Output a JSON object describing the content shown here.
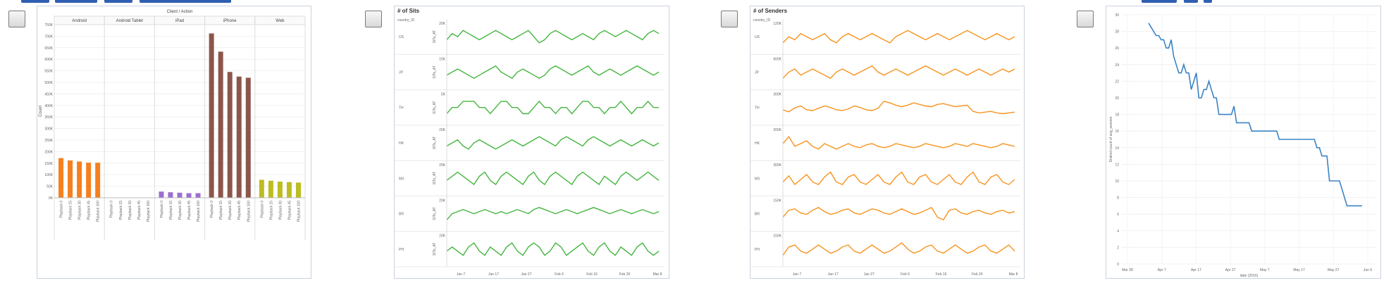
{
  "colors": {
    "accent": "#2f5fb3",
    "android": "#f4801f",
    "ipad": "#9d6fd0",
    "iphone": "#8c564b",
    "web": "#bcbd22",
    "sits": "#44b53f",
    "senders": "#f7931e",
    "steps": "#3b83c5",
    "border": "#c9d2dc"
  },
  "checkboxes": [
    {
      "name": "select-thumbnail-1",
      "checked": false
    },
    {
      "name": "select-thumbnail-2",
      "checked": false
    },
    {
      "name": "select-thumbnail-3",
      "checked": false
    },
    {
      "name": "select-thumbnail-4",
      "checked": false
    }
  ],
  "chart_data": [
    {
      "type": "bar",
      "title": "Client / Action",
      "ylabel": "Count",
      "ylim": [
        0,
        750000
      ],
      "yticks": [
        "0K",
        "50K",
        "100K",
        "150K",
        "200K",
        "250K",
        "300K",
        "350K",
        "400K",
        "450K",
        "500K",
        "550K",
        "600K",
        "650K",
        "700K",
        "750K"
      ],
      "panels": [
        {
          "name": "Android",
          "color_key": "android",
          "categories": [
            "Playback 0",
            "Playback 15",
            "Playback 30",
            "Playback 45",
            "Playback 100"
          ],
          "values": [
            172000,
            162000,
            157000,
            152000,
            152000
          ]
        },
        {
          "name": "Android Tablet",
          "color_key": "android",
          "categories": [
            "Playback 0",
            "Playback 15",
            "Playback 30",
            "Playback 45",
            "Playback 100"
          ],
          "values": [
            1500,
            1400,
            1300,
            1200,
            1100
          ]
        },
        {
          "name": "iPad",
          "color_key": "ipad",
          "categories": [
            "Playback 0",
            "Playback 15",
            "Playback 30",
            "Playback 45",
            "Playback 100"
          ],
          "values": [
            27000,
            24000,
            22000,
            20000,
            20000
          ]
        },
        {
          "name": "iPhone",
          "color_key": "iphone",
          "categories": [
            "Playback 0",
            "Playback 15",
            "Playback 30",
            "Playback 45",
            "Playback 100"
          ],
          "values": [
            712000,
            633000,
            545000,
            525000,
            520000
          ]
        },
        {
          "name": "Web",
          "color_key": "web",
          "categories": [
            "Playback 0",
            "Playback 15",
            "Playback 30",
            "Playback 45",
            "Playback 100"
          ],
          "values": [
            78000,
            74000,
            70000,
            68000,
            66000
          ]
        }
      ]
    },
    {
      "type": "line",
      "title": "# of Sits",
      "row_header": "country_ID",
      "ylabel": "SITs_AT",
      "xticks": [
        "Jan 7",
        "Jan 17",
        "Jan 27",
        "Feb 6",
        "Feb 16",
        "Feb 26",
        "Mar 8"
      ],
      "rows": [
        {
          "name": "US",
          "top_tick": "20K",
          "values": [
            16,
            18,
            17,
            19,
            18,
            17,
            16,
            17,
            18,
            19,
            18,
            17,
            16,
            17,
            18,
            19,
            17,
            15,
            16,
            18,
            19,
            18,
            17,
            16,
            17,
            18,
            17,
            16,
            18,
            19,
            18,
            17,
            18,
            19,
            18,
            17,
            16,
            18,
            19,
            18
          ]
        },
        {
          "name": "JP",
          "top_tick": "15K",
          "values": [
            10,
            11,
            12,
            11,
            10,
            9,
            10,
            11,
            12,
            13,
            11,
            10,
            9,
            11,
            12,
            11,
            10,
            9,
            10,
            12,
            13,
            12,
            11,
            10,
            11,
            12,
            13,
            11,
            10,
            11,
            12,
            11,
            10,
            11,
            12,
            13,
            12,
            11,
            10,
            11
          ]
        },
        {
          "name": "TH",
          "top_tick": "5K",
          "values": [
            4.0,
            4.1,
            4.1,
            4.2,
            4.2,
            4.2,
            4.1,
            4.1,
            4.0,
            4.1,
            4.2,
            4.2,
            4.1,
            4.1,
            4.0,
            4.0,
            4.1,
            4.2,
            4.1,
            4.1,
            4.0,
            4.1,
            4.1,
            4.0,
            4.1,
            4.2,
            4.2,
            4.1,
            4.1,
            4.0,
            4.1,
            4.1,
            4.2,
            4.1,
            4.0,
            4.1,
            4.1,
            4.2,
            4.1,
            4.1
          ]
        },
        {
          "name": "HK",
          "top_tick": "20K",
          "values": [
            13,
            14,
            15,
            13,
            12,
            14,
            15,
            14,
            13,
            12,
            13,
            14,
            15,
            14,
            13,
            14,
            15,
            16,
            15,
            14,
            13,
            15,
            16,
            15,
            14,
            13,
            15,
            16,
            15,
            14,
            13,
            14,
            15,
            14,
            13,
            14,
            15,
            14,
            13,
            14
          ]
        },
        {
          "name": "MX",
          "top_tick": "20K",
          "values": [
            14,
            15,
            16,
            15,
            14,
            13,
            15,
            16,
            14,
            13,
            15,
            16,
            15,
            14,
            13,
            15,
            16,
            14,
            13,
            15,
            16,
            15,
            14,
            13,
            15,
            16,
            15,
            14,
            13,
            15,
            14,
            13,
            15,
            16,
            15,
            14,
            15,
            16,
            15,
            14
          ]
        },
        {
          "name": "BR",
          "top_tick": "20K",
          "values": [
            9,
            12,
            13,
            14,
            13,
            12,
            13,
            14,
            13,
            12,
            13,
            12,
            13,
            14,
            13,
            12,
            14,
            15,
            14,
            13,
            12,
            13,
            14,
            13,
            12,
            13,
            14,
            15,
            14,
            13,
            12,
            13,
            14,
            13,
            12,
            13,
            14,
            13,
            12,
            13
          ]
        },
        {
          "name": "PH",
          "top_tick": "20K",
          "values": [
            13,
            14,
            13,
            12,
            14,
            15,
            13,
            12,
            14,
            13,
            12,
            14,
            15,
            13,
            12,
            14,
            15,
            14,
            12,
            13,
            15,
            14,
            12,
            13,
            14,
            15,
            13,
            12,
            14,
            15,
            13,
            12,
            14,
            13,
            12,
            14,
            15,
            13,
            12,
            13
          ]
        }
      ]
    },
    {
      "type": "line",
      "title": "# of Senders",
      "row_header": "country_ID",
      "xticks": [
        "Jan 7",
        "Jan 17",
        "Jan 27",
        "Feb 6",
        "Feb 16",
        "Feb 26",
        "Mar 8"
      ],
      "rows": [
        {
          "name": "US",
          "top_tick": "120K",
          "values": [
            95,
            97,
            96,
            98,
            97,
            96,
            97,
            98,
            96,
            95,
            97,
            98,
            97,
            96,
            97,
            98,
            97,
            96,
            95,
            97,
            98,
            99,
            98,
            97,
            96,
            97,
            98,
            97,
            96,
            97,
            98,
            99,
            98,
            97,
            96,
            97,
            98,
            97,
            96,
            97
          ]
        },
        {
          "name": "JP",
          "top_tick": "600K",
          "values": [
            50,
            52,
            53,
            51,
            52,
            53,
            52,
            51,
            50,
            52,
            53,
            52,
            51,
            52,
            53,
            54,
            52,
            51,
            52,
            53,
            52,
            51,
            52,
            53,
            54,
            53,
            52,
            51,
            52,
            53,
            52,
            51,
            52,
            53,
            52,
            51,
            52,
            53,
            52,
            53
          ]
        },
        {
          "name": "TH",
          "top_tick": "300K",
          "values": [
            240,
            235,
            245,
            250,
            240,
            238,
            244,
            250,
            246,
            240,
            238,
            242,
            250,
            246,
            240,
            238,
            244,
            262,
            258,
            252,
            248,
            252,
            258,
            254,
            250,
            248,
            254,
            256,
            252,
            248,
            250,
            252,
            236,
            232,
            234,
            236,
            232,
            230,
            232,
            234
          ]
        },
        {
          "name": "HK",
          "top_tick": "200K",
          "values": [
            150,
            155,
            148,
            150,
            152,
            148,
            146,
            150,
            148,
            146,
            148,
            150,
            148,
            147,
            149,
            150,
            148,
            147,
            148,
            150,
            149,
            148,
            147,
            148,
            150,
            149,
            148,
            147,
            148,
            150,
            149,
            148,
            150,
            149,
            148,
            147,
            148,
            150,
            149,
            148
          ]
        },
        {
          "name": "MX",
          "top_tick": "300K",
          "values": [
            240,
            245,
            238,
            242,
            246,
            240,
            238,
            244,
            248,
            240,
            238,
            244,
            246,
            240,
            238,
            242,
            246,
            240,
            238,
            244,
            248,
            240,
            238,
            244,
            246,
            240,
            238,
            242,
            246,
            240,
            238,
            244,
            248,
            240,
            238,
            244,
            246,
            240,
            238,
            242
          ]
        },
        {
          "name": "BR",
          "top_tick": "150K",
          "values": [
            100,
            110,
            112,
            106,
            104,
            110,
            114,
            108,
            104,
            106,
            110,
            112,
            106,
            104,
            108,
            112,
            110,
            106,
            104,
            108,
            112,
            108,
            104,
            106,
            110,
            114,
            100,
            96,
            110,
            112,
            106,
            104,
            108,
            110,
            106,
            104,
            108,
            110,
            106,
            108
          ]
        },
        {
          "name": "PH",
          "top_tick": "150K",
          "values": [
            100,
            108,
            110,
            104,
            102,
            106,
            110,
            106,
            102,
            104,
            108,
            110,
            104,
            102,
            106,
            110,
            106,
            102,
            104,
            108,
            112,
            106,
            102,
            104,
            108,
            110,
            104,
            102,
            106,
            110,
            106,
            102,
            104,
            108,
            110,
            104,
            102,
            106,
            110,
            104
          ]
        }
      ]
    },
    {
      "type": "line",
      "xlabel": "date (2016)",
      "ylabel": "Distinct count of avg_session",
      "ylim": [
        0,
        30
      ],
      "yticks": [
        "0",
        "2",
        "4",
        "6",
        "8",
        "10",
        "12",
        "14",
        "16",
        "18",
        "20",
        "22",
        "24",
        "26",
        "28",
        "30"
      ],
      "xticks": [
        "Mar 28",
        "Apr 7",
        "Apr 17",
        "Apr 27",
        "May 7",
        "May 17",
        "May 27",
        "Jun 6"
      ],
      "values": [
        29,
        28.5,
        28,
        27.5,
        27.5,
        27,
        27,
        26,
        26,
        27,
        25,
        24,
        23,
        23,
        24,
        23,
        23,
        21,
        22,
        23,
        20,
        20,
        21,
        21,
        22,
        21,
        20,
        20,
        18,
        18,
        18,
        18,
        18,
        18,
        19,
        17,
        17,
        17,
        17,
        17,
        17,
        16,
        16,
        16,
        16,
        16,
        16,
        16,
        16,
        16,
        16,
        16,
        15,
        15,
        15,
        15,
        15,
        15,
        15,
        15,
        15,
        15,
        15,
        15,
        15,
        15,
        15,
        14,
        14,
        13,
        13,
        13,
        10,
        10,
        10,
        10,
        10,
        9,
        8,
        7,
        7,
        7,
        7,
        7,
        7,
        7
      ]
    }
  ]
}
